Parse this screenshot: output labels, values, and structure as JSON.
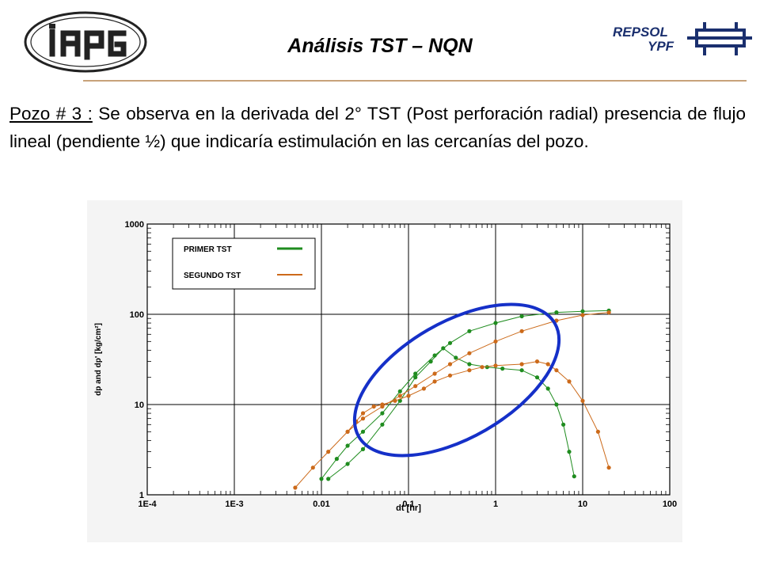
{
  "header": {
    "title": "Análisis TST – NQN",
    "left_logo_text": "iapg",
    "right_logo_text": [
      "REPSOL",
      "YPF"
    ]
  },
  "body": {
    "label": "Pozo # 3 :",
    "text": " Se observa en la derivada del 2° TST (Post perforación radial) presencia de flujo lineal (pendiente ½) que indicaría estimulación en las cercanías del pozo."
  },
  "colors": {
    "primer": "#1f8c1f",
    "segundo": "#cc6a1a",
    "ellipse": "#1530c8",
    "rule": "#c8a27a"
  },
  "chart_data": {
    "type": "scatter",
    "xscale": "log",
    "yscale": "log",
    "xlim": [
      0.0001,
      100
    ],
    "ylim": [
      1,
      1000
    ],
    "xlabel": "dt [hr]",
    "ylabel": "dp and dp' [kg/cm²]",
    "x_ticks": [
      "1E-4",
      "1E-3",
      "0.01",
      "0.1",
      "1",
      "10",
      "100"
    ],
    "y_ticks": [
      "1",
      "10",
      "100",
      "1000"
    ],
    "grid": true,
    "legend_position": "top-left",
    "legend": [
      "PRIMER TST",
      "SEGUNDO TST"
    ],
    "series": [
      {
        "name": "PRIMER TST",
        "color": "#1f8c1f",
        "pressure": [
          [
            0.01,
            1.5
          ],
          [
            0.015,
            2.5
          ],
          [
            0.02,
            3.5
          ],
          [
            0.03,
            5
          ],
          [
            0.05,
            8
          ],
          [
            0.08,
            14
          ],
          [
            0.12,
            22
          ],
          [
            0.2,
            35
          ],
          [
            0.3,
            48
          ],
          [
            0.5,
            65
          ],
          [
            1,
            80
          ],
          [
            2,
            95
          ],
          [
            5,
            105
          ],
          [
            10,
            108
          ],
          [
            20,
            110
          ]
        ],
        "derivative": [
          [
            0.012,
            1.5
          ],
          [
            0.02,
            2.2
          ],
          [
            0.03,
            3.2
          ],
          [
            0.05,
            6
          ],
          [
            0.08,
            11
          ],
          [
            0.12,
            20
          ],
          [
            0.18,
            30
          ],
          [
            0.25,
            42
          ],
          [
            0.35,
            33
          ],
          [
            0.5,
            28
          ],
          [
            0.8,
            26
          ],
          [
            1.2,
            25
          ],
          [
            2,
            24
          ],
          [
            3,
            20
          ],
          [
            4,
            15
          ],
          [
            5,
            10
          ],
          [
            6,
            6
          ],
          [
            7,
            3
          ],
          [
            8,
            1.6
          ]
        ]
      },
      {
        "name": "SEGUNDO TST",
        "color": "#cc6a1a",
        "pressure": [
          [
            0.005,
            1.2
          ],
          [
            0.008,
            2
          ],
          [
            0.012,
            3
          ],
          [
            0.02,
            5
          ],
          [
            0.03,
            7
          ],
          [
            0.05,
            9.5
          ],
          [
            0.08,
            12.5
          ],
          [
            0.12,
            16
          ],
          [
            0.2,
            22
          ],
          [
            0.3,
            28
          ],
          [
            0.5,
            37
          ],
          [
            1,
            50
          ],
          [
            2,
            65
          ],
          [
            5,
            85
          ],
          [
            10,
            98
          ],
          [
            20,
            105
          ]
        ],
        "derivative": [
          [
            0.02,
            5
          ],
          [
            0.025,
            6.5
          ],
          [
            0.03,
            8
          ],
          [
            0.04,
            9.5
          ],
          [
            0.05,
            10
          ],
          [
            0.07,
            11
          ],
          [
            0.1,
            12.5
          ],
          [
            0.15,
            15
          ],
          [
            0.2,
            18
          ],
          [
            0.3,
            21
          ],
          [
            0.5,
            24
          ],
          [
            0.7,
            26
          ],
          [
            1,
            27
          ],
          [
            2,
            28
          ],
          [
            3,
            30
          ],
          [
            4,
            28
          ],
          [
            5,
            24
          ],
          [
            7,
            18
          ],
          [
            10,
            11
          ],
          [
            15,
            5
          ],
          [
            20,
            2
          ]
        ]
      }
    ]
  }
}
